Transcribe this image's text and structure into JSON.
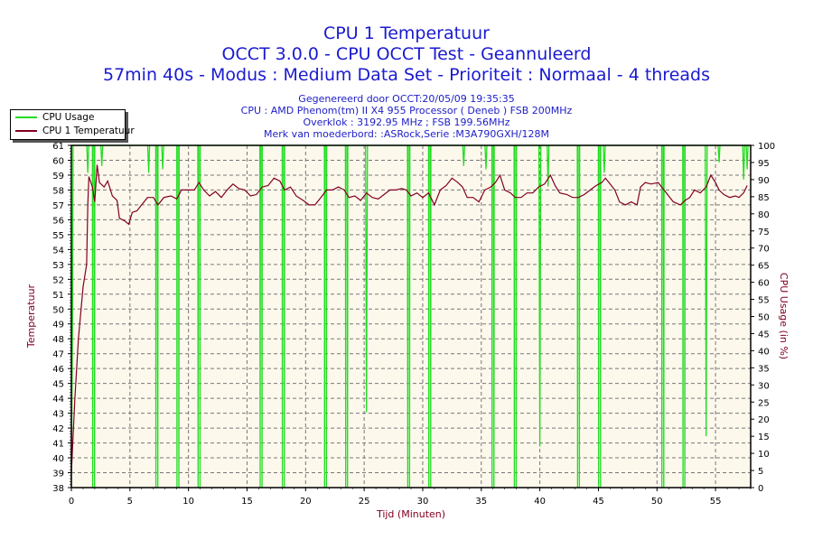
{
  "header": {
    "title": "CPU 1 Temperatuur",
    "subtitle": "OCCT 3.0.0 - CPU OCCT Test - Geannuleerd",
    "test_info": "57min 40s - Modus : Medium Data Set - Prioriteit : Normaal - 4 threads",
    "info_lines": [
      "Gegenereerd door OCCT:20/05/09 19:35:35",
      "CPU : AMD Phenom(tm) II X4 955 Processor ( Deneb ) FSB 200MHz",
      "Overklok : 3192.95 MHz ; FSB 199.56MHz",
      "Merk van moederbord: :ASRock,Serie :M3A790GXH/128M"
    ]
  },
  "colors": {
    "usage": "#22dd22",
    "temperature": "#800020",
    "plot_bg": "#fdf8ec",
    "title": "#1a1ad0"
  },
  "chart_data": {
    "type": "line",
    "title": "CPU 1 Temperatuur",
    "xlabel": "Tijd (Minuten)",
    "ylabel": "Temperatuur",
    "y2label": "CPU Usage (in %)",
    "xlim": [
      0,
      58
    ],
    "ylim": [
      38,
      61
    ],
    "y2lim": [
      0,
      100
    ],
    "xticks": [
      0,
      5,
      10,
      15,
      20,
      25,
      30,
      35,
      40,
      45,
      50,
      55
    ],
    "yticks": [
      38,
      39,
      40,
      41,
      42,
      43,
      44,
      45,
      46,
      47,
      48,
      49,
      50,
      51,
      52,
      53,
      54,
      55,
      56,
      57,
      58,
      59,
      60,
      61
    ],
    "y2ticks": [
      0,
      5,
      10,
      15,
      20,
      25,
      30,
      35,
      40,
      45,
      50,
      55,
      60,
      65,
      70,
      75,
      80,
      85,
      90,
      95,
      100
    ],
    "grid": true,
    "legend_position": "top-left",
    "series": [
      {
        "name": "CPU Usage",
        "axis": "right",
        "baseline": 100,
        "start": [
          [
            0,
            0
          ],
          [
            0.1,
            50
          ],
          [
            0.15,
            100
          ]
        ],
        "full_drops_min": [
          1.9,
          7.3,
          9.1,
          10.9,
          16.2,
          18.1,
          21.7,
          23.5,
          28.8,
          30.6,
          36.0,
          37.9,
          43.3,
          45.1,
          50.5,
          52.3
        ],
        "partial_drops": [
          [
            1.4,
            92
          ],
          [
            2.6,
            94
          ],
          [
            6.6,
            92
          ],
          [
            7.8,
            93
          ],
          [
            25.2,
            22
          ],
          [
            33.5,
            94
          ],
          [
            35.4,
            93
          ],
          [
            40.0,
            12
          ],
          [
            40.7,
            88
          ],
          [
            45.5,
            92
          ],
          [
            54.2,
            15
          ],
          [
            55.3,
            95
          ],
          [
            57.4,
            90
          ],
          [
            57.7,
            93
          ]
        ]
      },
      {
        "name": "CPU 1 Temperatuur",
        "axis": "left",
        "points": [
          [
            0,
            39
          ],
          [
            0.3,
            44
          ],
          [
            0.6,
            48
          ],
          [
            1.0,
            51.5
          ],
          [
            1.3,
            53
          ],
          [
            1.4,
            57
          ],
          [
            1.5,
            58.9
          ],
          [
            1.8,
            58.2
          ],
          [
            2.0,
            57.2
          ],
          [
            2.2,
            59.7
          ],
          [
            2.4,
            58.5
          ],
          [
            2.8,
            58.2
          ],
          [
            3.1,
            58.6
          ],
          [
            3.5,
            57.6
          ],
          [
            3.9,
            57.3
          ],
          [
            4.1,
            56.1
          ],
          [
            4.6,
            55.9
          ],
          [
            4.9,
            55.7
          ],
          [
            5.2,
            56.5
          ],
          [
            5.6,
            56.6
          ],
          [
            6.0,
            57.0
          ],
          [
            6.5,
            57.5
          ],
          [
            7.0,
            57.5
          ],
          [
            7.4,
            57.0
          ],
          [
            7.9,
            57.5
          ],
          [
            8.5,
            57.6
          ],
          [
            9.0,
            57.4
          ],
          [
            9.4,
            58.0
          ],
          [
            10.0,
            58.0
          ],
          [
            10.5,
            58.0
          ],
          [
            10.9,
            58.5
          ],
          [
            11.3,
            58.0
          ],
          [
            11.8,
            57.6
          ],
          [
            12.3,
            57.9
          ],
          [
            12.8,
            57.5
          ],
          [
            13.3,
            58.0
          ],
          [
            13.8,
            58.4
          ],
          [
            14.3,
            58.1
          ],
          [
            14.8,
            58.0
          ],
          [
            15.3,
            57.6
          ],
          [
            15.8,
            57.7
          ],
          [
            16.3,
            58.2
          ],
          [
            16.8,
            58.3
          ],
          [
            17.3,
            58.8
          ],
          [
            17.8,
            58.6
          ],
          [
            18.2,
            58.0
          ],
          [
            18.7,
            58.2
          ],
          [
            19.2,
            57.6
          ],
          [
            19.8,
            57.3
          ],
          [
            20.3,
            57.0
          ],
          [
            20.8,
            57.0
          ],
          [
            21.3,
            57.5
          ],
          [
            21.8,
            58.0
          ],
          [
            22.3,
            58.0
          ],
          [
            22.8,
            58.2
          ],
          [
            23.3,
            58.0
          ],
          [
            23.7,
            57.5
          ],
          [
            24.2,
            57.6
          ],
          [
            24.7,
            57.3
          ],
          [
            25.2,
            57.8
          ],
          [
            25.7,
            57.5
          ],
          [
            26.2,
            57.4
          ],
          [
            26.7,
            57.7
          ],
          [
            27.2,
            58.0
          ],
          [
            27.7,
            58.0
          ],
          [
            28.2,
            58.1
          ],
          [
            28.6,
            58.0
          ],
          [
            29.0,
            57.6
          ],
          [
            29.5,
            57.8
          ],
          [
            30.0,
            57.5
          ],
          [
            30.5,
            57.8
          ],
          [
            31.0,
            57.0
          ],
          [
            31.5,
            58.0
          ],
          [
            32.0,
            58.3
          ],
          [
            32.5,
            58.8
          ],
          [
            33.0,
            58.5
          ],
          [
            33.4,
            58.2
          ],
          [
            33.8,
            57.5
          ],
          [
            34.3,
            57.5
          ],
          [
            34.8,
            57.2
          ],
          [
            35.3,
            58.0
          ],
          [
            35.8,
            58.2
          ],
          [
            36.2,
            58.5
          ],
          [
            36.6,
            59.0
          ],
          [
            37.0,
            58.0
          ],
          [
            37.5,
            57.8
          ],
          [
            37.9,
            57.5
          ],
          [
            38.4,
            57.5
          ],
          [
            38.9,
            57.8
          ],
          [
            39.4,
            57.8
          ],
          [
            39.9,
            58.2
          ],
          [
            40.4,
            58.4
          ],
          [
            40.9,
            59.0
          ],
          [
            41.3,
            58.3
          ],
          [
            41.7,
            57.8
          ],
          [
            42.3,
            57.7
          ],
          [
            42.8,
            57.5
          ],
          [
            43.3,
            57.5
          ],
          [
            43.8,
            57.7
          ],
          [
            44.3,
            58.0
          ],
          [
            44.8,
            58.3
          ],
          [
            45.3,
            58.5
          ],
          [
            45.6,
            58.8
          ],
          [
            46.0,
            58.4
          ],
          [
            46.4,
            58.0
          ],
          [
            46.8,
            57.2
          ],
          [
            47.3,
            57.0
          ],
          [
            47.8,
            57.2
          ],
          [
            48.3,
            57.0
          ],
          [
            48.6,
            58.2
          ],
          [
            49.0,
            58.5
          ],
          [
            49.5,
            58.4
          ],
          [
            50.1,
            58.5
          ],
          [
            50.6,
            58.0
          ],
          [
            51.0,
            57.6
          ],
          [
            51.4,
            57.2
          ],
          [
            52.0,
            57.0
          ],
          [
            52.4,
            57.3
          ],
          [
            52.8,
            57.5
          ],
          [
            53.2,
            58.0
          ],
          [
            53.7,
            57.8
          ],
          [
            54.2,
            58.2
          ],
          [
            54.6,
            59.0
          ],
          [
            55.0,
            58.5
          ],
          [
            55.3,
            58.0
          ],
          [
            55.7,
            57.7
          ],
          [
            56.2,
            57.5
          ],
          [
            56.7,
            57.6
          ],
          [
            57.0,
            57.5
          ],
          [
            57.4,
            57.8
          ],
          [
            57.7,
            58.3
          ]
        ]
      }
    ]
  }
}
